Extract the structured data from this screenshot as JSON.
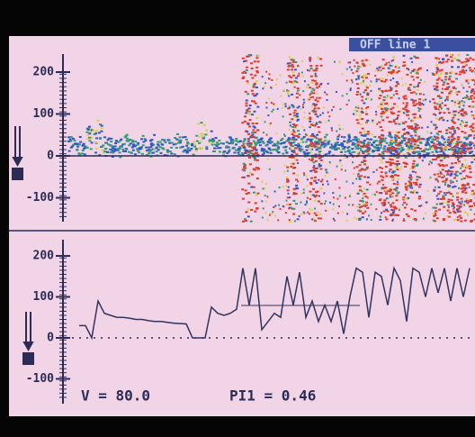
{
  "header": {
    "status": "OFF line 1"
  },
  "top_panel": {
    "yticks": [
      200,
      100,
      0,
      -100
    ]
  },
  "bottom_panel": {
    "type": "line",
    "color": "#33335f",
    "yticks": [
      200,
      100,
      0,
      -100
    ],
    "values": [
      30,
      30,
      0,
      90,
      60,
      55,
      50,
      50,
      48,
      45,
      45,
      42,
      40,
      40,
      38,
      36,
      35,
      34,
      0,
      0,
      0,
      75,
      60,
      55,
      60,
      70,
      170,
      80,
      170,
      20,
      40,
      60,
      50,
      150,
      80,
      160,
      50,
      90,
      40,
      80,
      40,
      90,
      10,
      100,
      170,
      160,
      50,
      160,
      150,
      80,
      170,
      140,
      40,
      170,
      160,
      100,
      170,
      110,
      170,
      90,
      170,
      100,
      170
    ]
  },
  "readouts": {
    "velocity": "V = 80.0",
    "pulsatility": "PI1 = 0.46"
  }
}
